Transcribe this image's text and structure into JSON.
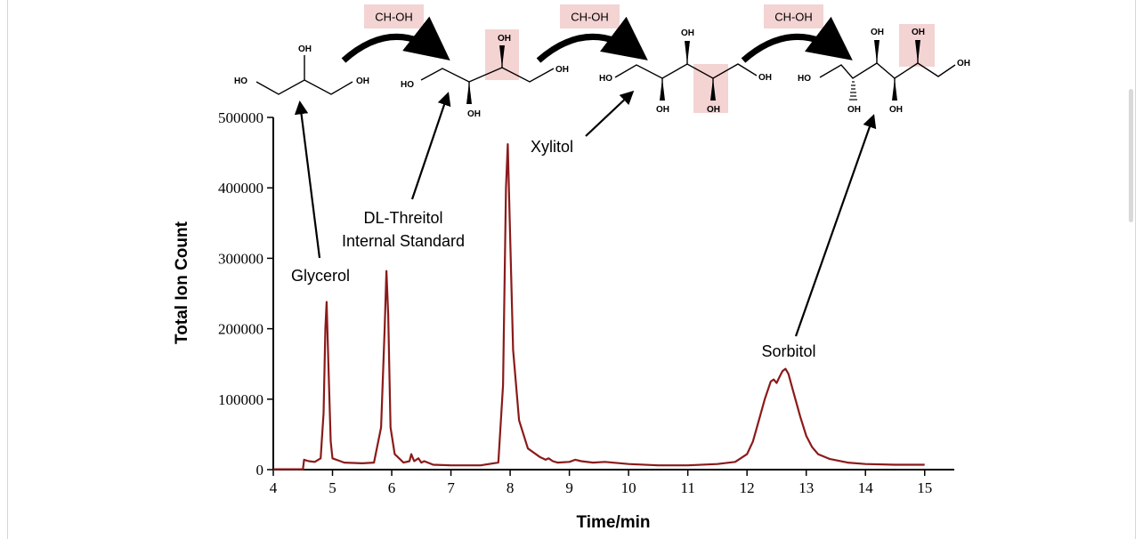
{
  "chart_data": {
    "type": "line",
    "xlabel": "Time/min",
    "ylabel": "Total Ion Count",
    "xlim": [
      4,
      15.5
    ],
    "ylim": [
      0,
      500000
    ],
    "x_ticks": [
      "4",
      "5",
      "6",
      "7",
      "8",
      "9",
      "10",
      "11",
      "12",
      "13",
      "14",
      "15"
    ],
    "y_ticks": [
      "0",
      "100000",
      "200000",
      "300000",
      "400000",
      "500000"
    ],
    "grid": false,
    "color": "#8b1a1a",
    "series": [
      {
        "x": [
          4.0,
          4.5,
          4.52,
          4.6,
          4.7,
          4.8,
          4.85,
          4.88,
          4.9,
          4.93,
          4.97,
          5.0,
          5.2,
          5.5,
          5.7,
          5.82,
          5.88,
          5.91,
          5.94,
          5.98,
          6.05,
          6.2,
          6.3,
          6.33,
          6.38,
          6.45,
          6.5,
          6.55,
          6.7,
          7.0,
          7.5,
          7.8,
          7.88,
          7.93,
          7.96,
          8.0,
          8.05,
          8.15,
          8.3,
          8.5,
          8.6,
          8.65,
          8.72,
          8.8,
          9.0,
          9.1,
          9.2,
          9.4,
          9.6,
          10.0,
          10.5,
          11.0,
          11.5,
          11.8,
          12.0,
          12.1,
          12.2,
          12.3,
          12.4,
          12.45,
          12.5,
          12.55,
          12.6,
          12.65,
          12.7,
          12.8,
          12.9,
          13.0,
          13.1,
          13.2,
          13.4,
          13.7,
          14.0,
          14.5,
          15.0
        ],
        "y": [
          500,
          500,
          14000,
          12000,
          11000,
          16000,
          80000,
          200000,
          238000,
          150000,
          40000,
          16000,
          10000,
          9000,
          10000,
          60000,
          200000,
          282000,
          220000,
          60000,
          22000,
          10000,
          12000,
          22000,
          12000,
          16000,
          10000,
          12000,
          7000,
          6000,
          6000,
          10000,
          120000,
          400000,
          462000,
          330000,
          170000,
          70000,
          30000,
          18000,
          14000,
          16000,
          12000,
          10000,
          11000,
          14000,
          12000,
          10000,
          11000,
          8000,
          6000,
          6000,
          8000,
          11000,
          22000,
          40000,
          70000,
          100000,
          125000,
          128000,
          123000,
          132000,
          140000,
          143000,
          136000,
          105000,
          75000,
          48000,
          32000,
          22000,
          15000,
          10000,
          8000,
          7000,
          7000
        ]
      }
    ],
    "annotations": [
      {
        "name": "glycerol",
        "text": "Glycerol"
      },
      {
        "name": "threitol-1",
        "text": "DL-Threitol"
      },
      {
        "name": "threitol-2",
        "text": "Internal Standard"
      },
      {
        "name": "xylitol",
        "text": "Xylitol"
      },
      {
        "name": "sorbitol",
        "text": "Sorbitol"
      }
    ]
  },
  "reactions": [
    {
      "label": "CH-OH"
    },
    {
      "label": "CH-OH"
    },
    {
      "label": "CH-OH"
    }
  ],
  "chem_labels": {
    "oh": "OH",
    "ho": "HO"
  }
}
